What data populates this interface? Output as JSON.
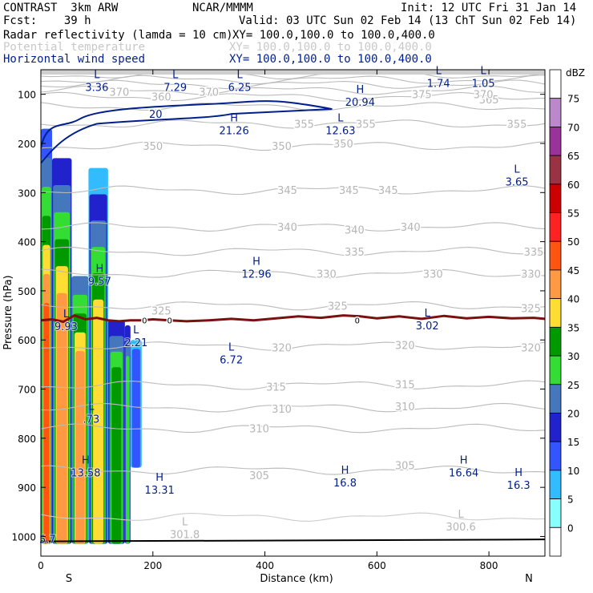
{
  "header": {
    "model": "CONTRAST  3km ARW",
    "center": "NCAR/MMMM",
    "init": "Init: 12 UTC Fri 31 Jan 14",
    "fcst": "Fcst:    39 h",
    "valid": "Valid: 03 UTC Sun 02 Feb 14 (13 ChT Sun 02 Feb 14)",
    "fields": [
      {
        "name": "Radar reflectivity (lamda = 10 cm)",
        "xy": "XY= 100.0,100.0 to 100.0,400.0"
      },
      {
        "name": "Potential temperature",
        "xy": "XY= 100.0,100.0 to 100.0,400.0"
      },
      {
        "name": "Horizontal wind speed",
        "xy": "XY= 100.0,100.0 to 100.0,400.0"
      }
    ]
  },
  "chart_data": {
    "type": "cross-section",
    "xlabel": "Distance (km)",
    "ylabel": "Pressure (hPa)",
    "xlim": [
      0,
      900
    ],
    "ylim": [
      1040,
      50
    ],
    "xticks": [
      0,
      200,
      400,
      600,
      800
    ],
    "yticks": [
      100,
      200,
      300,
      400,
      500,
      600,
      700,
      800,
      900,
      1000
    ],
    "endpoints": {
      "left": "S",
      "right": "N"
    },
    "colorbar": {
      "unit": "dBZ",
      "levels": [
        0,
        5,
        10,
        15,
        20,
        25,
        30,
        35,
        40,
        45,
        50,
        55,
        60,
        65,
        70,
        75
      ],
      "colors": [
        "#ffffff",
        "#88ffff",
        "#33bbff",
        "#3355ff",
        "#2222cc",
        "#4477bb",
        "#33dd33",
        "#009900",
        "#ffdd33",
        "#ff9944",
        "#ff5511",
        "#ff2222",
        "#cc0000",
        "#993344",
        "#993399",
        "#bb88cc",
        "#ffffff"
      ]
    },
    "theta_labels": [
      {
        "x": 200,
        "p": 205,
        "v": "350"
      },
      {
        "x": 430,
        "p": 205,
        "v": "350"
      },
      {
        "x": 540,
        "p": 200,
        "v": "350"
      },
      {
        "x": 470,
        "p": 160,
        "v": "355"
      },
      {
        "x": 580,
        "p": 160,
        "v": "355"
      },
      {
        "x": 850,
        "p": 160,
        "v": "355"
      },
      {
        "x": 800,
        "p": 110,
        "v": "365"
      },
      {
        "x": 680,
        "p": 100,
        "v": "375"
      },
      {
        "x": 790,
        "p": 100,
        "v": "370"
      },
      {
        "x": 140,
        "p": 95,
        "v": "370"
      },
      {
        "x": 300,
        "p": 95,
        "v": "370"
      },
      {
        "x": 215,
        "p": 105,
        "v": "360"
      },
      {
        "x": 440,
        "p": 295,
        "v": "345"
      },
      {
        "x": 550,
        "p": 295,
        "v": "345"
      },
      {
        "x": 620,
        "p": 295,
        "v": "345"
      },
      {
        "x": 440,
        "p": 370,
        "v": "340"
      },
      {
        "x": 660,
        "p": 370,
        "v": "340"
      },
      {
        "x": 560,
        "p": 375,
        "v": "340"
      },
      {
        "x": 560,
        "p": 420,
        "v": "335"
      },
      {
        "x": 880,
        "p": 420,
        "v": "335"
      },
      {
        "x": 510,
        "p": 465,
        "v": "330"
      },
      {
        "x": 700,
        "p": 465,
        "v": "330"
      },
      {
        "x": 875,
        "p": 465,
        "v": "330"
      },
      {
        "x": 530,
        "p": 530,
        "v": "325"
      },
      {
        "x": 875,
        "p": 535,
        "v": "325"
      },
      {
        "x": 215,
        "p": 540,
        "v": "325"
      },
      {
        "x": 430,
        "p": 615,
        "v": "320"
      },
      {
        "x": 650,
        "p": 610,
        "v": "320"
      },
      {
        "x": 875,
        "p": 615,
        "v": "320"
      },
      {
        "x": 420,
        "p": 695,
        "v": "315"
      },
      {
        "x": 650,
        "p": 690,
        "v": "315"
      },
      {
        "x": 430,
        "p": 740,
        "v": "310"
      },
      {
        "x": 650,
        "p": 735,
        "v": "310"
      },
      {
        "x": 390,
        "p": 780,
        "v": "310"
      },
      {
        "x": 390,
        "p": 875,
        "v": "305"
      },
      {
        "x": 650,
        "p": 855,
        "v": "305"
      }
    ],
    "wind_contour_labels": [
      {
        "x": 205,
        "p": 140,
        "v": "20"
      }
    ],
    "theta_extrema": [
      {
        "type": "L",
        "x": 257,
        "p": 990,
        "v": "301.8"
      },
      {
        "type": "L",
        "x": 750,
        "p": 975,
        "v": "300.6"
      }
    ],
    "wind_extrema": [
      {
        "type": "L",
        "x": 100,
        "p": 80,
        "v": "3.36"
      },
      {
        "type": "L",
        "x": 240,
        "p": 80,
        "v": "7.29"
      },
      {
        "type": "L",
        "x": 355,
        "p": 80,
        "v": "6.25"
      },
      {
        "type": "L",
        "x": 710,
        "p": 72,
        "v": "1.74"
      },
      {
        "type": "L",
        "x": 790,
        "p": 72,
        "v": "1.05"
      },
      {
        "type": "H",
        "x": 570,
        "p": 110,
        "v": "20.94"
      },
      {
        "type": "H",
        "x": 345,
        "p": 168,
        "v": "21.26"
      },
      {
        "type": "L",
        "x": 535,
        "p": 168,
        "v": "12.63"
      },
      {
        "type": "L",
        "x": 850,
        "p": 273,
        "v": "3.65"
      },
      {
        "type": "H",
        "x": 385,
        "p": 460,
        "v": "12.96"
      },
      {
        "type": "H",
        "x": 105,
        "p": 475,
        "v": "9.57"
      },
      {
        "type": "L",
        "x": 45,
        "p": 567,
        "v": "9.93"
      },
      {
        "type": "L",
        "x": 690,
        "p": 565,
        "v": "3.02"
      },
      {
        "type": "L",
        "x": 170,
        "p": 600,
        "v": "2.21"
      },
      {
        "type": "L",
        "x": 340,
        "p": 635,
        "v": "6.72"
      },
      {
        "type": "L",
        "x": 90,
        "p": 755,
        "v": ".73"
      },
      {
        "type": "H",
        "x": 80,
        "p": 865,
        "v": "13.58"
      },
      {
        "type": "H",
        "x": 212,
        "p": 900,
        "v": "13.31"
      },
      {
        "type": "H",
        "x": 543,
        "p": 885,
        "v": "16.8"
      },
      {
        "type": "H",
        "x": 755,
        "p": 865,
        "v": "16.64"
      },
      {
        "type": "H",
        "x": 853,
        "p": 890,
        "v": "16.3"
      },
      {
        "type": "",
        "x": 12,
        "p": 1000,
        "v": "5.7"
      }
    ],
    "freezing_level": {
      "label": "0",
      "label_x": [
        185,
        230,
        565
      ],
      "points": [
        [
          0,
          560
        ],
        [
          20,
          558
        ],
        [
          40,
          563
        ],
        [
          60,
          550
        ],
        [
          80,
          558
        ],
        [
          100,
          555
        ],
        [
          120,
          560
        ],
        [
          140,
          562
        ],
        [
          160,
          560
        ],
        [
          180,
          560
        ],
        [
          200,
          558
        ],
        [
          230,
          560
        ],
        [
          260,
          562
        ],
        [
          300,
          560
        ],
        [
          340,
          557
        ],
        [
          380,
          560
        ],
        [
          420,
          556
        ],
        [
          460,
          552
        ],
        [
          500,
          555
        ],
        [
          540,
          550
        ],
        [
          570,
          552
        ],
        [
          600,
          556
        ],
        [
          640,
          552
        ],
        [
          680,
          557
        ],
        [
          720,
          551
        ],
        [
          760,
          556
        ],
        [
          800,
          553
        ],
        [
          840,
          556
        ],
        [
          880,
          555
        ],
        [
          900,
          557
        ]
      ]
    },
    "reflectivity_columns": [
      {
        "x0": 0,
        "x1": 20,
        "pTop": 170,
        "pBot": 1015,
        "levels": [
          10,
          20,
          25,
          30,
          35,
          40,
          45
        ]
      },
      {
        "x0": 20,
        "x1": 55,
        "pTop": 230,
        "pBot": 1015,
        "levels": [
          15,
          20,
          25,
          30,
          35,
          40
        ]
      },
      {
        "x0": 55,
        "x1": 85,
        "pTop": 470,
        "pBot": 1015,
        "levels": [
          20,
          25,
          30,
          35,
          40
        ]
      },
      {
        "x0": 85,
        "x1": 120,
        "pTop": 250,
        "pBot": 1015,
        "levels": [
          5,
          15,
          20,
          25,
          30,
          35
        ]
      },
      {
        "x0": 120,
        "x1": 150,
        "pTop": 560,
        "pBot": 1015,
        "levels": [
          15,
          20,
          25,
          30
        ]
      },
      {
        "x0": 150,
        "x1": 160,
        "pTop": 570,
        "pBot": 1015,
        "levels": [
          15,
          20,
          25
        ]
      },
      {
        "x0": 160,
        "x1": 180,
        "pTop": 600,
        "pBot": 860,
        "levels": [
          5,
          10
        ]
      }
    ]
  }
}
